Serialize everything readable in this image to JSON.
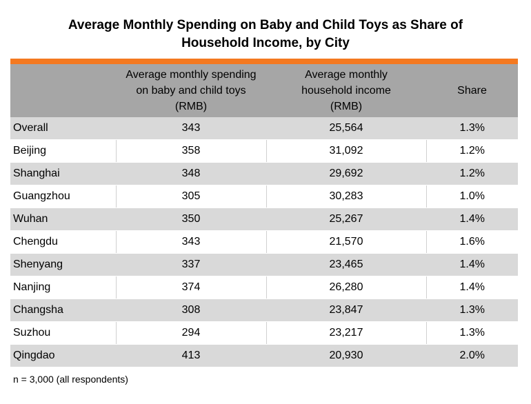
{
  "chart_data": {
    "type": "table",
    "title_line1": "Average Monthly Spending on Baby and Child Toys as Share of",
    "title_line2": "Household Income, by City",
    "columns": [
      "",
      "Average monthly spending on baby and child toys (RMB)",
      "Average monthly household income (RMB)",
      "Share"
    ],
    "header_lines": {
      "col1": [
        "Average monthly spending",
        "on baby and child toys",
        "(RMB)"
      ],
      "col2": [
        "Average monthly",
        "household income",
        "(RMB)"
      ],
      "col3": [
        "Share"
      ]
    },
    "rows": [
      {
        "city": "Overall",
        "spending": "343",
        "income": "25,564",
        "share": "1.3%"
      },
      {
        "city": "Beijing",
        "spending": "358",
        "income": "31,092",
        "share": "1.2%"
      },
      {
        "city": "Shanghai",
        "spending": "348",
        "income": "29,692",
        "share": "1.2%"
      },
      {
        "city": "Guangzhou",
        "spending": "305",
        "income": "30,283",
        "share": "1.0%"
      },
      {
        "city": "Wuhan",
        "spending": "350",
        "income": "25,267",
        "share": "1.4%"
      },
      {
        "city": "Chengdu",
        "spending": "343",
        "income": "21,570",
        "share": "1.6%"
      },
      {
        "city": "Shenyang",
        "spending": "337",
        "income": "23,465",
        "share": "1.4%"
      },
      {
        "city": "Nanjing",
        "spending": "374",
        "income": "26,280",
        "share": "1.4%"
      },
      {
        "city": "Changsha",
        "spending": "308",
        "income": "23,847",
        "share": "1.3%"
      },
      {
        "city": "Suzhou",
        "spending": "294",
        "income": "23,217",
        "share": "1.3%"
      },
      {
        "city": "Qingdao",
        "spending": "413",
        "income": "20,930",
        "share": "2.0%"
      }
    ],
    "footnote": "n = 3,000 (all respondents)"
  },
  "colors": {
    "accent_bar": "#f47920",
    "header_bg": "#a6a6a6",
    "band_bg": "#d9d9d9"
  }
}
